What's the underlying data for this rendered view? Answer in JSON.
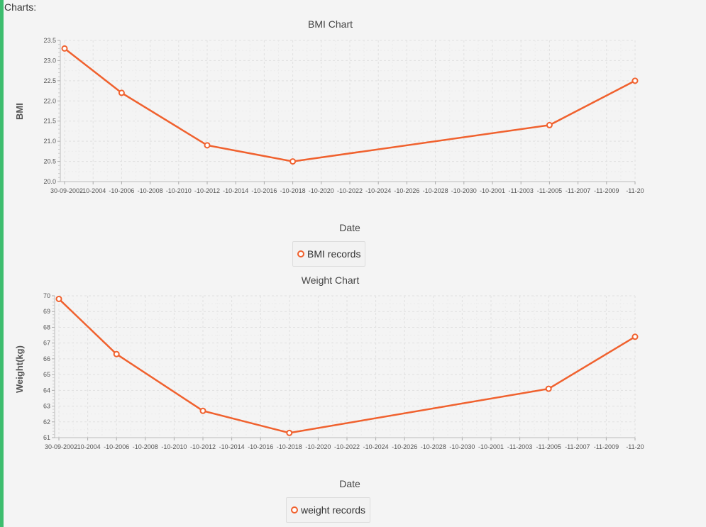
{
  "page": {
    "section_label": "Charts:",
    "accent_color": "#3dbd6e",
    "series_color": "#f0612e"
  },
  "chart_data": [
    {
      "type": "line",
      "title": "BMI Chart",
      "xlabel": "Date",
      "ylabel": "BMI",
      "x_tick_labels": [
        "30-09-2002",
        "-10-2004",
        "-10-2006",
        "-10-2008",
        "-10-2010",
        "-10-2012",
        "-10-2014",
        "-10-2016",
        "-10-2018",
        "-10-2020",
        "-10-2022",
        "-10-2024",
        "-10-2026",
        "-10-2028",
        "-10-2030",
        "-10-2001",
        "-11-2003",
        "-11-2005",
        "-11-2007",
        "-11-2009",
        "-11-20"
      ],
      "y_ticks": [
        "20.0",
        "20.5",
        "21.0",
        "21.5",
        "22.0",
        "22.5",
        "23.0",
        "23.5"
      ],
      "ylim": [
        20.0,
        23.5
      ],
      "grid": true,
      "legend_position": "bottom",
      "series": [
        {
          "name": "BMI records",
          "x": [
            "30-09-2002",
            "-10-2006",
            "-10-2012",
            "-10-2018",
            "-11-2005",
            "-11-20"
          ],
          "values": [
            23.3,
            22.2,
            20.9,
            20.5,
            21.4,
            22.5
          ]
        }
      ]
    },
    {
      "type": "line",
      "title": "Weight Chart",
      "xlabel": "Date",
      "ylabel": "Weight(kg)",
      "x_tick_labels": [
        "30-09-2002",
        "-10-2004",
        "-10-2006",
        "-10-2008",
        "-10-2010",
        "-10-2012",
        "-10-2014",
        "-10-2016",
        "-10-2018",
        "-10-2020",
        "-10-2022",
        "-10-2024",
        "-10-2026",
        "-10-2028",
        "-10-2030",
        "-10-2001",
        "-11-2003",
        "-11-2005",
        "-11-2007",
        "-11-2009",
        "-11-20"
      ],
      "y_ticks": [
        "61",
        "62",
        "63",
        "64",
        "65",
        "66",
        "67",
        "68",
        "69",
        "70"
      ],
      "ylim": [
        61,
        70
      ],
      "grid": true,
      "legend_position": "bottom",
      "series": [
        {
          "name": "weight records",
          "x": [
            "30-09-2002",
            "-10-2006",
            "-10-2012",
            "-10-2018",
            "-11-2005",
            "-11-20"
          ],
          "values": [
            69.8,
            66.3,
            62.7,
            61.3,
            64.1,
            67.4
          ]
        }
      ]
    }
  ]
}
